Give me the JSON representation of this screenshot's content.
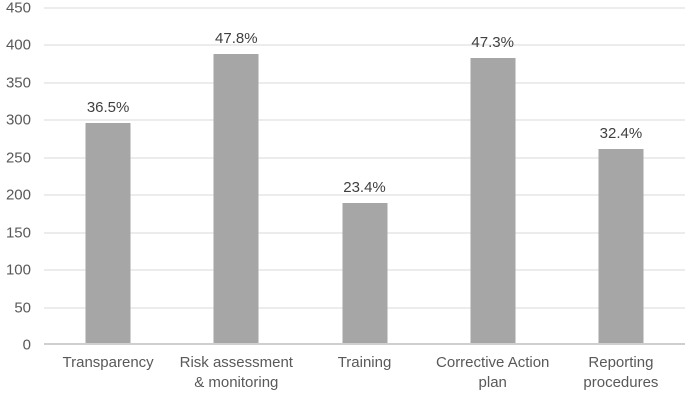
{
  "chart_data": {
    "type": "bar",
    "title": "",
    "xlabel": "",
    "ylabel": "",
    "categories": [
      "Transparency",
      "Risk assessment & monitoring",
      "Training",
      "Corrective Action plan",
      "Reporting procedures"
    ],
    "values": [
      296,
      388,
      190,
      383,
      262
    ],
    "data_labels": [
      "36.5%",
      "47.8%",
      "23.4%",
      "47.3%",
      "32.4%"
    ],
    "ylim": [
      0,
      450
    ],
    "yticks": [
      0,
      50,
      100,
      150,
      200,
      250,
      300,
      350,
      400,
      450
    ],
    "grid": true,
    "legend_position": "none",
    "colors": {
      "bar": "#a6a6a6",
      "gridline": "#d9d9d9",
      "axis_line": "#cfcfcf",
      "tick_label": "#595959",
      "data_label": "#404040"
    }
  }
}
